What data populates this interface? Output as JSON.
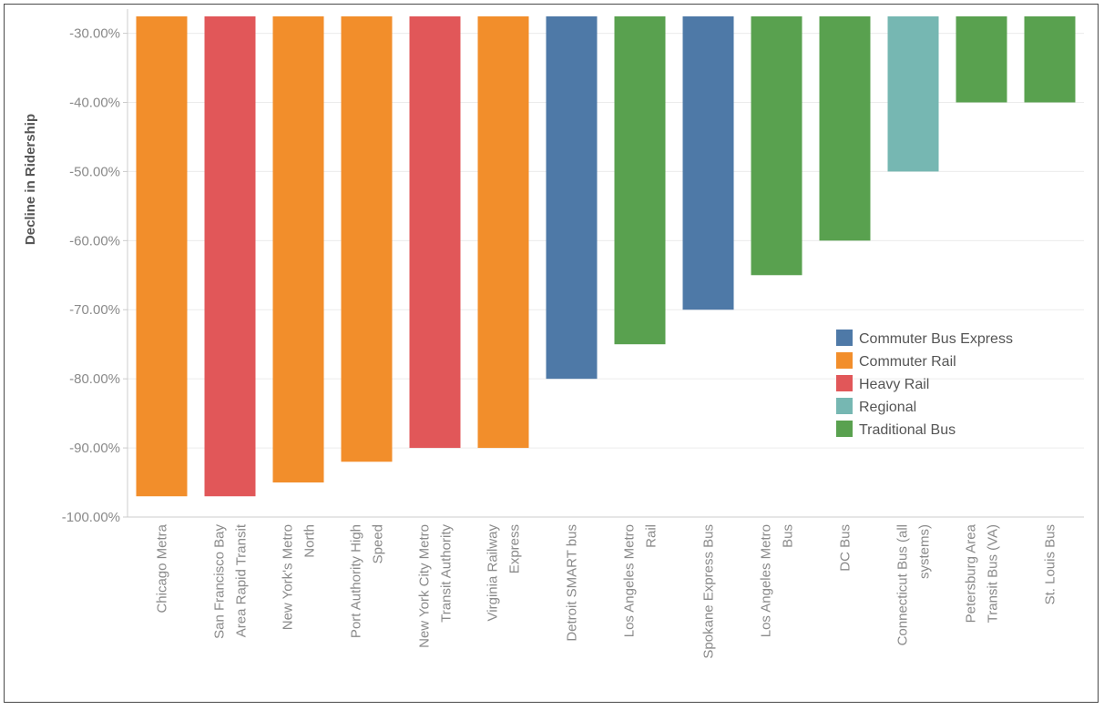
{
  "chart_data": {
    "type": "bar",
    "title": "",
    "xlabel": "",
    "ylabel": "Decline in Ridership",
    "ylim": [
      -100,
      -26.5
    ],
    "yticks": [
      "-30.00%",
      "-40.00%",
      "-50.00%",
      "-60.00%",
      "-70.00%",
      "-80.00%",
      "-90.00%",
      "-100.00%"
    ],
    "grid": true,
    "legend_position": "right",
    "categories": [
      [
        "Chicago Metra"
      ],
      [
        "San Francisco Bay",
        "Area Rapid Transit"
      ],
      [
        "New York's Metro",
        "North"
      ],
      [
        "Port Authority High",
        "Speed"
      ],
      [
        "New York City Metro",
        "Transit Authority"
      ],
      [
        "Virginia Railway",
        "Express"
      ],
      [
        "Detroit SMART bus"
      ],
      [
        "Los Angeles Metro",
        "Rail"
      ],
      [
        "Spokane Express Bus"
      ],
      [
        "Los Angeles Metro",
        "Bus"
      ],
      [
        "DC Bus"
      ],
      [
        "Connecticut Bus (all",
        "systems)"
      ],
      [
        "Petersburg Area",
        "Transit Bus (VA)"
      ],
      [
        "St. Louis Bus"
      ]
    ],
    "values": [
      -97,
      -97,
      -95,
      -92,
      -90,
      -90,
      -80,
      -75,
      -70,
      -65,
      -60,
      -50,
      -40,
      -40
    ],
    "groups": [
      "Commuter Rail",
      "Heavy Rail",
      "Commuter Rail",
      "Commuter Rail",
      "Heavy Rail",
      "Commuter Rail",
      "Commuter Bus Express",
      "Traditional Bus",
      "Commuter Bus Express",
      "Traditional Bus",
      "Traditional Bus",
      "Regional",
      "Traditional Bus",
      "Traditional Bus"
    ],
    "legend": [
      {
        "name": "Commuter Bus Express",
        "color": "#4e79a7"
      },
      {
        "name": "Commuter Rail",
        "color": "#f28e2b"
      },
      {
        "name": "Heavy Rail",
        "color": "#e15759"
      },
      {
        "name": "Regional",
        "color": "#76b7b2"
      },
      {
        "name": "Traditional Bus",
        "color": "#59a14f"
      }
    ]
  }
}
